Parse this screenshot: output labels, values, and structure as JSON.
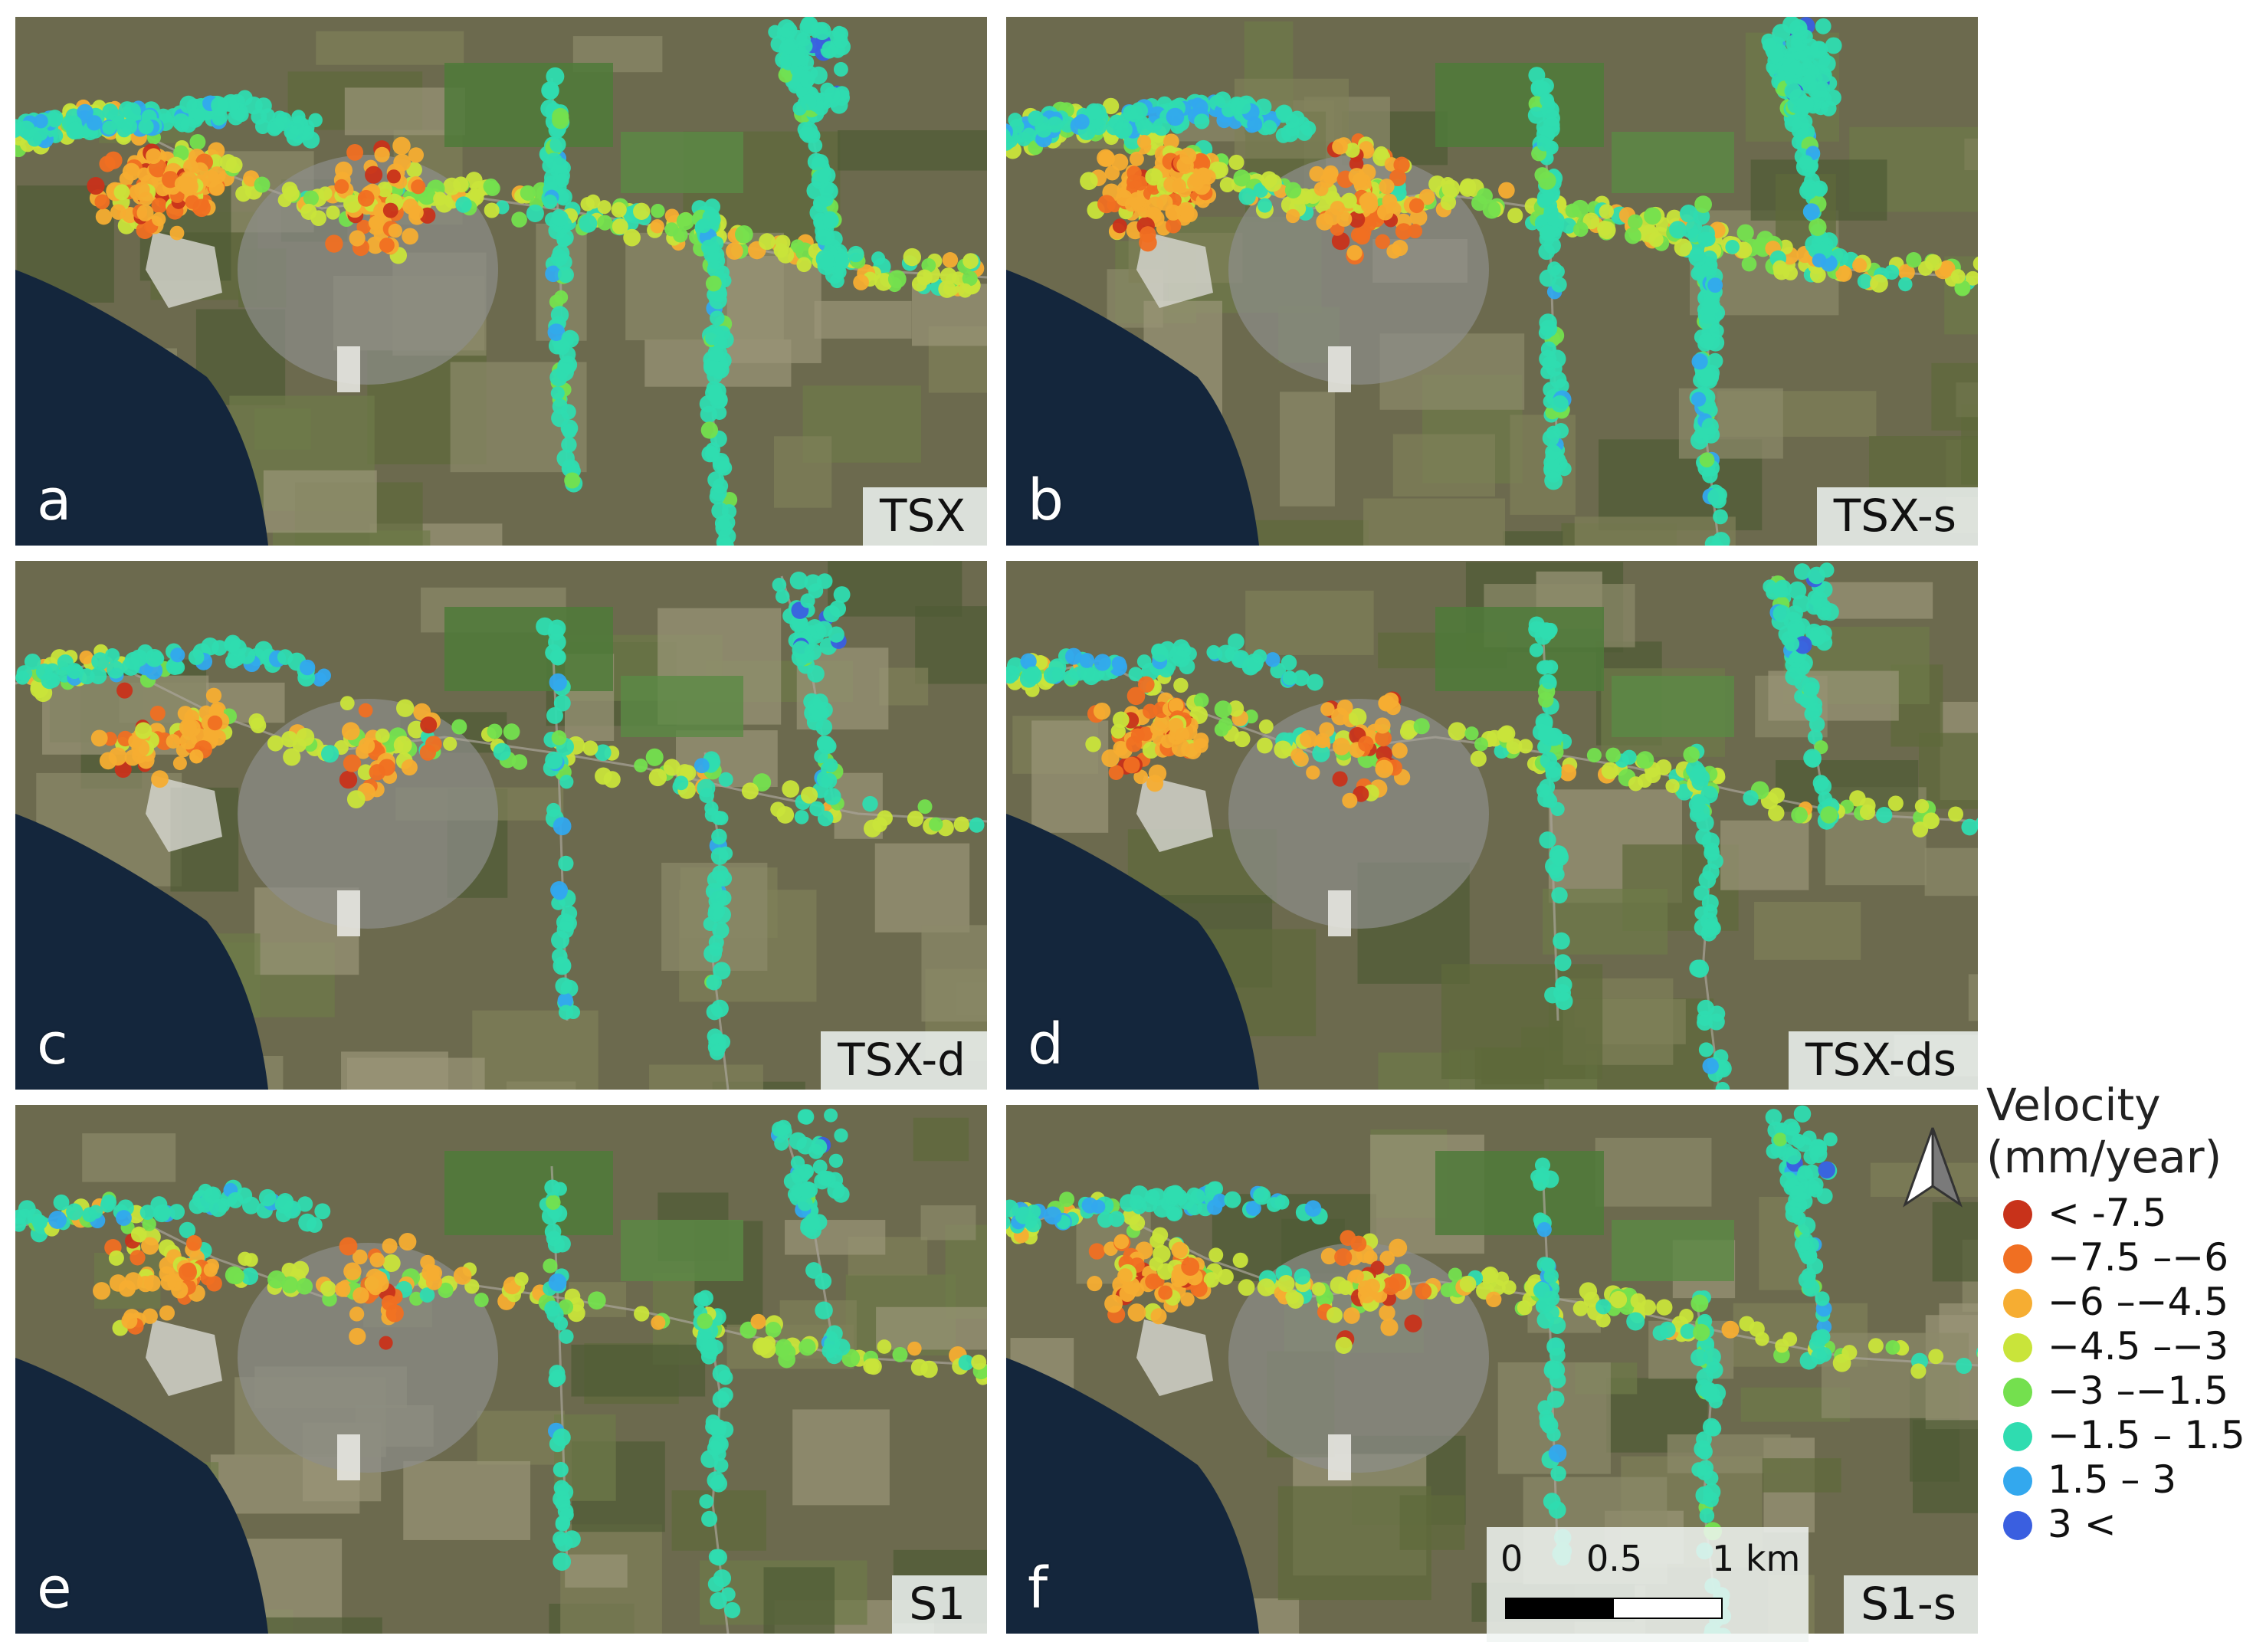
{
  "panels": [
    {
      "letter": "a",
      "tag": "TSX"
    },
    {
      "letter": "b",
      "tag": "TSX-s"
    },
    {
      "letter": "c",
      "tag": "TSX-d"
    },
    {
      "letter": "d",
      "tag": "TSX-ds"
    },
    {
      "letter": "e",
      "tag": "S1"
    },
    {
      "letter": "f",
      "tag": "S1-s"
    }
  ],
  "legend": {
    "title_line1": "Velocity",
    "title_line2": "(mm/year)",
    "classes": [
      {
        "label": "< -7.5",
        "color": "#c8321a"
      },
      {
        "label": "−7.5 –−6",
        "color": "#f06f22"
      },
      {
        "label": "−6 –−4.5",
        "color": "#f6ad32"
      },
      {
        "label": "−4.5 –−3",
        "color": "#c9e43a"
      },
      {
        "label": "−3 –−1.5",
        "color": "#74e04e"
      },
      {
        "label": "−1.5 – 1.5",
        "color": "#2fdcb0"
      },
      {
        "label": "1.5 – 3",
        "color": "#33a8ee"
      },
      {
        "label": "3 <",
        "color": "#3a5fe0"
      }
    ]
  },
  "scale_bar": {
    "tick_0": "0",
    "tick_mid": "0.5",
    "tick_end": "1 km"
  },
  "north_arrow": "north-arrow-icon"
}
